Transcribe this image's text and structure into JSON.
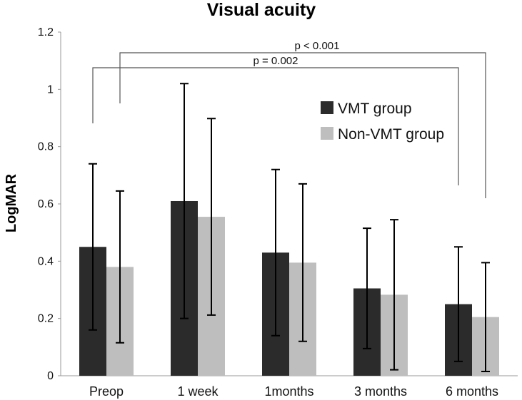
{
  "chart_data": {
    "type": "bar",
    "title": "Visual acuity",
    "xlabel": "",
    "ylabel": "LogMAR",
    "ylim": [
      0,
      1.2
    ],
    "yticks": [
      "0",
      "0.2",
      "0.4",
      "0.6",
      "0.8",
      "1",
      "1.2"
    ],
    "grid": false,
    "legend_position": "top-right",
    "categories": [
      "Preop",
      "1 week",
      "1months",
      "3 months",
      "6 months"
    ],
    "series": [
      {
        "name": "VMT group",
        "color": "#2b2b2b",
        "values": [
          0.45,
          0.61,
          0.43,
          0.305,
          0.25
        ],
        "error": [
          0.29,
          0.41,
          0.29,
          0.21,
          0.2
        ]
      },
      {
        "name": "Non-VMT group",
        "color": "#bebebe",
        "values": [
          0.38,
          0.555,
          0.395,
          0.283,
          0.205
        ],
        "error": [
          0.265,
          0.343,
          0.275,
          0.262,
          0.19
        ]
      }
    ],
    "annotations": [
      {
        "text": "p = 0.002",
        "from_category": "Preop",
        "to_category": "6 months",
        "series": "VMT group"
      },
      {
        "text": "p < 0.001",
        "from_category": "Preop",
        "to_category": "6 months",
        "series": "Non-VMT group"
      }
    ]
  }
}
